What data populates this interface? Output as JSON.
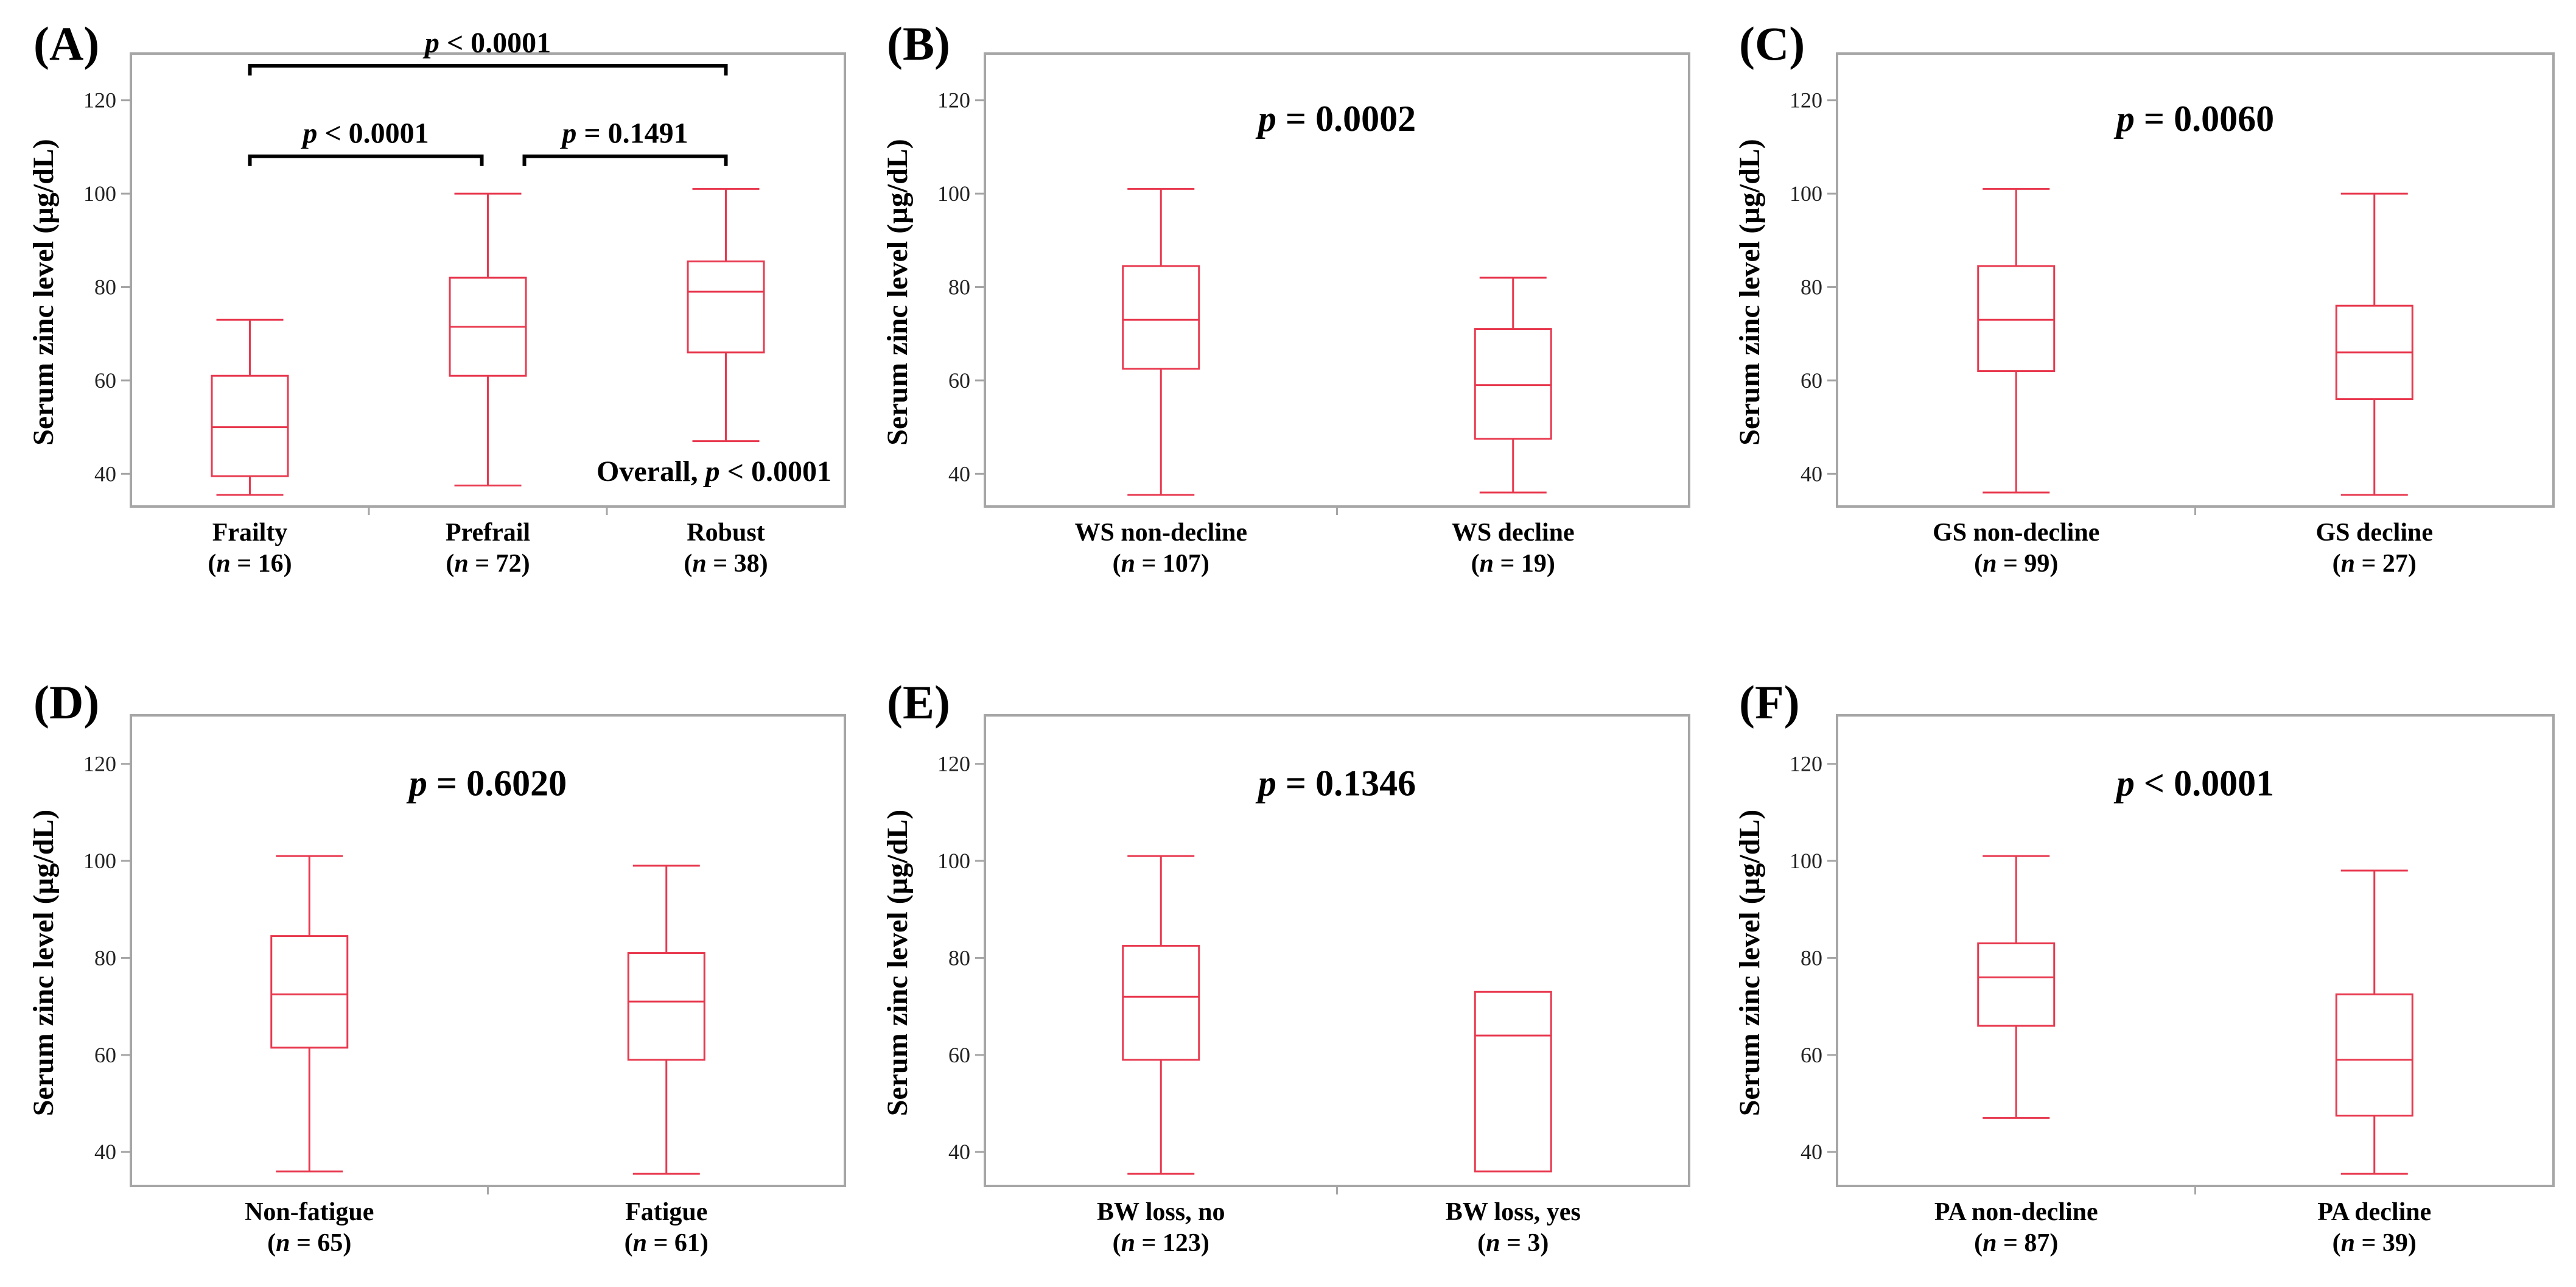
{
  "chart_data": [
    {
      "type": "box",
      "panel_label": "(A)",
      "ylabel": "Serum zinc level (µg/dL)",
      "ylim": [
        33,
        130
      ],
      "yticks": [
        40,
        60,
        80,
        100,
        120
      ],
      "categories": [
        "Frailty",
        "Prefrail",
        "Robust"
      ],
      "n_labels": [
        "16",
        "72",
        "38"
      ],
      "boxes": [
        {
          "min": 35.5,
          "q1": 39.5,
          "median": 50,
          "q3": 61,
          "max": 73
        },
        {
          "min": 37.5,
          "q1": 61,
          "median": 71.5,
          "q3": 82,
          "max": 100
        },
        {
          "min": 47,
          "q1": 66,
          "median": 79,
          "q3": 85.5,
          "max": 101
        }
      ],
      "p_text": "",
      "overall_prefix": "Overall,",
      "overall_p": "< 0.0001",
      "comparisons": [
        {
          "from": 0,
          "to": 2,
          "p": "< 0.0001"
        },
        {
          "from": 0,
          "to": 1,
          "p": "< 0.0001"
        },
        {
          "from": 1,
          "to": 2,
          "p": "= 0.1491"
        }
      ]
    },
    {
      "type": "box",
      "panel_label": "(B)",
      "ylabel": "Serum zinc level (µg/dL)",
      "ylim": [
        33,
        130
      ],
      "yticks": [
        40,
        60,
        80,
        100,
        120
      ],
      "categories": [
        "WS non-decline",
        "WS decline"
      ],
      "n_labels": [
        "107",
        "19"
      ],
      "boxes": [
        {
          "min": 35.5,
          "q1": 62.5,
          "median": 73,
          "q3": 84.5,
          "max": 101
        },
        {
          "min": 36,
          "q1": 47.5,
          "median": 59,
          "q3": 71,
          "max": 82
        }
      ],
      "p_text": "= 0.0002"
    },
    {
      "type": "box",
      "panel_label": "(C)",
      "ylabel": "Serum zinc level (µg/dL)",
      "ylim": [
        33,
        130
      ],
      "yticks": [
        40,
        60,
        80,
        100,
        120
      ],
      "categories": [
        "GS non-decline",
        "GS decline"
      ],
      "n_labels": [
        "99",
        "27"
      ],
      "boxes": [
        {
          "min": 36,
          "q1": 62,
          "median": 73,
          "q3": 84.5,
          "max": 101
        },
        {
          "min": 35.5,
          "q1": 56,
          "median": 66,
          "q3": 76,
          "max": 100
        }
      ],
      "p_text": "= 0.0060"
    },
    {
      "type": "box",
      "panel_label": "(D)",
      "ylabel": "Serum zinc level (µg/dL)",
      "ylim": [
        33,
        130
      ],
      "yticks": [
        40,
        60,
        80,
        100,
        120
      ],
      "categories": [
        "Non-fatigue",
        "Fatigue"
      ],
      "n_labels": [
        "65",
        "61"
      ],
      "boxes": [
        {
          "min": 36,
          "q1": 61.5,
          "median": 72.5,
          "q3": 84.5,
          "max": 101
        },
        {
          "min": 35.5,
          "q1": 59,
          "median": 71,
          "q3": 81,
          "max": 99
        }
      ],
      "p_text": "= 0.6020"
    },
    {
      "type": "box",
      "panel_label": "(E)",
      "ylabel": "Serum zinc level (µg/dL)",
      "ylim": [
        33,
        130
      ],
      "yticks": [
        40,
        60,
        80,
        100,
        120
      ],
      "categories": [
        "BW loss, no",
        "BW loss, yes"
      ],
      "n_labels": [
        "123",
        "3"
      ],
      "boxes": [
        {
          "min": 35.5,
          "q1": 59,
          "median": 72,
          "q3": 82.5,
          "max": 101
        },
        {
          "min": 36,
          "q1": 36,
          "median": 64,
          "q3": 73,
          "max": 73
        }
      ],
      "p_text": "= 0.1346"
    },
    {
      "type": "box",
      "panel_label": "(F)",
      "ylabel": "Serum zinc level (µg/dL)",
      "ylim": [
        33,
        130
      ],
      "yticks": [
        40,
        60,
        80,
        100,
        120
      ],
      "categories": [
        "PA non-decline",
        "PA decline"
      ],
      "n_labels": [
        "87",
        "39"
      ],
      "boxes": [
        {
          "min": 47,
          "q1": 66,
          "median": 76,
          "q3": 83,
          "max": 101
        },
        {
          "min": 35.5,
          "q1": 47.5,
          "median": 59,
          "q3": 72.5,
          "max": 98
        }
      ],
      "p_text": "< 0.0001"
    }
  ],
  "colors": {
    "box": "#e8394f",
    "frame": "#a6a6a6",
    "text": "#000000"
  }
}
